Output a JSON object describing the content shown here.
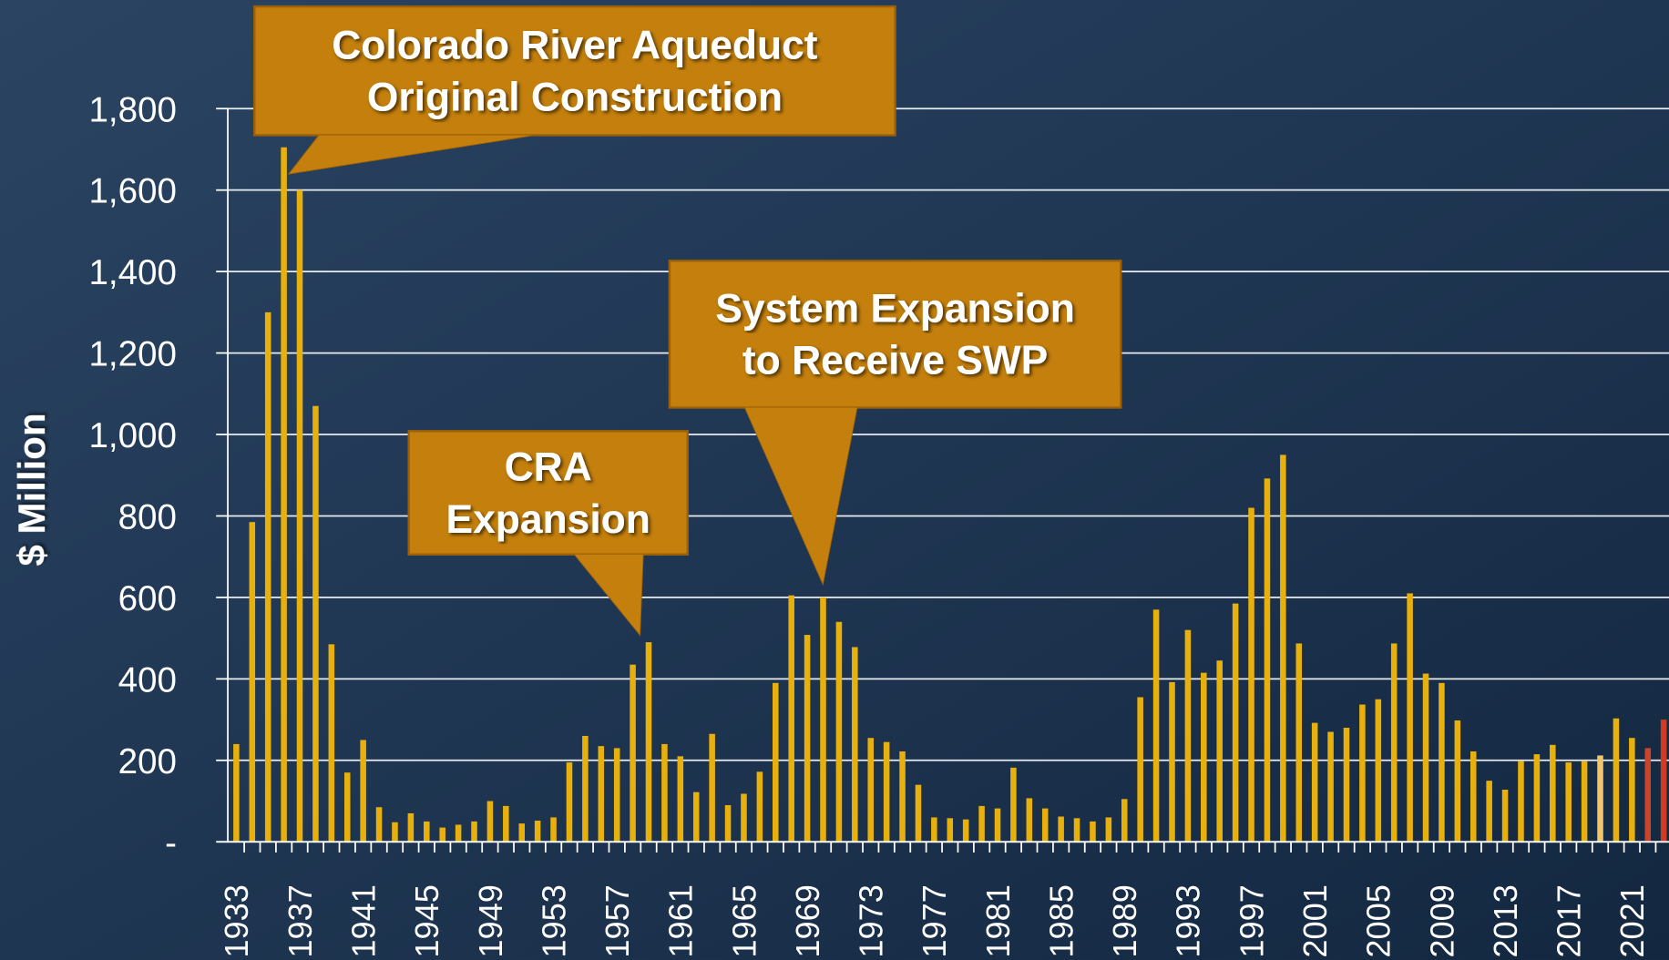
{
  "chart_data": {
    "type": "bar",
    "y_label": "$ Million",
    "categories": [
      "1933",
      null,
      null,
      null,
      "1937",
      null,
      null,
      null,
      "1941",
      null,
      null,
      null,
      "1945",
      null,
      null,
      null,
      "1949",
      null,
      null,
      null,
      "1953",
      null,
      null,
      null,
      "1957",
      null,
      null,
      null,
      "1961",
      null,
      null,
      null,
      "1965",
      null,
      null,
      null,
      "1969",
      null,
      null,
      null,
      "1973",
      null,
      null,
      null,
      "1977",
      null,
      null,
      null,
      "1981",
      null,
      null,
      null,
      "1985",
      null,
      null,
      null,
      "1989",
      null,
      null,
      null,
      "1993",
      null,
      null,
      null,
      "1997",
      null,
      null,
      null,
      "2001",
      null,
      null,
      null,
      "2005",
      null,
      null,
      null,
      "2009",
      null,
      null,
      null,
      "2013",
      null,
      null,
      null,
      "2017",
      null,
      null,
      null,
      "2021",
      null,
      null
    ],
    "values": [
      240,
      785,
      1300,
      1705,
      1600,
      1070,
      485,
      170,
      250,
      85,
      48,
      70,
      50,
      35,
      42,
      50,
      100,
      88,
      45,
      52,
      60,
      195,
      260,
      235,
      230,
      435,
      490,
      240,
      210,
      122,
      265,
      90,
      118,
      172,
      390,
      605,
      508,
      600,
      540,
      478,
      255,
      245,
      222,
      140,
      60,
      58,
      55,
      88,
      82,
      182,
      107,
      82,
      62,
      58,
      50,
      60,
      105,
      355,
      570,
      392,
      520,
      415,
      445,
      585,
      820,
      892,
      950,
      487,
      292,
      270,
      280,
      337,
      350,
      487,
      610,
      413,
      390,
      298,
      222,
      150,
      128,
      198,
      215,
      238,
      195,
      198,
      212,
      303,
      255,
      230,
      300
    ],
    "color": "#e8b00c",
    "highlight_colors": {
      "86": "#f2c56a",
      "89": "#c8442a",
      "90": "#d23a22"
    },
    "ylim": [
      0,
      1800
    ],
    "yticks": [
      {
        "value": 0,
        "label": "-"
      },
      200,
      400,
      600,
      800,
      {
        "value": 1000,
        "label": "1,000"
      },
      {
        "value": 1200,
        "label": "1,200"
      },
      {
        "value": 1400,
        "label": "1,400"
      },
      {
        "value": 1600,
        "label": "1,600"
      },
      {
        "value": 1800,
        "label": "1,800"
      }
    ],
    "grid": true,
    "annotations": [
      {
        "lines": [
          "Colorado River Aqueduct",
          "Original Construction"
        ]
      },
      {
        "lines": [
          "CRA",
          "Expansion"
        ]
      },
      {
        "lines": [
          "System Expansion",
          "to Receive SWP"
        ]
      }
    ]
  }
}
